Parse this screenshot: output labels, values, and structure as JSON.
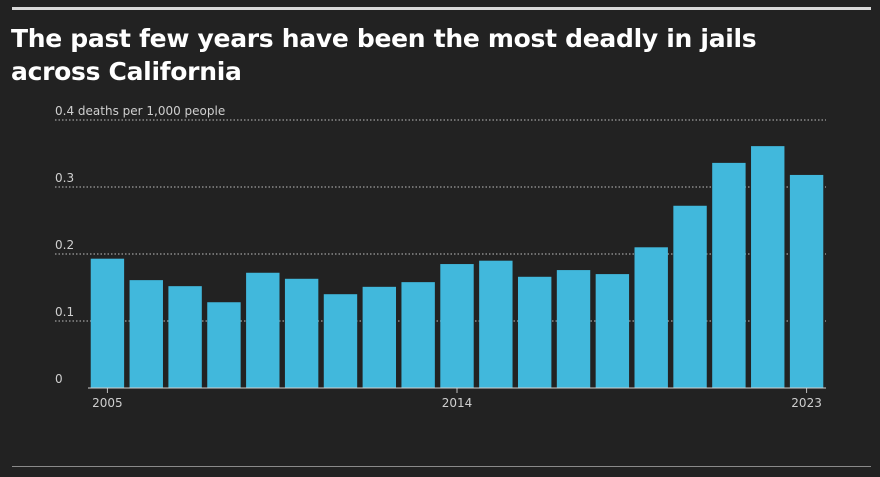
{
  "chart_data": {
    "type": "bar",
    "title": "The past few years have been the most deadly in jails across California",
    "categories": [
      "2005",
      null,
      null,
      null,
      null,
      null,
      null,
      null,
      null,
      "2014",
      null,
      null,
      null,
      null,
      null,
      null,
      null,
      null,
      "2023"
    ],
    "values": [
      0.193,
      0.161,
      0.152,
      0.128,
      0.172,
      0.163,
      0.14,
      0.151,
      0.158,
      0.185,
      0.19,
      0.166,
      0.176,
      0.17,
      0.21,
      0.272,
      0.336,
      0.361,
      0.318
    ],
    "color": "#41b8dc",
    "ylim": [
      0,
      0.4
    ],
    "yticks": [
      0,
      0.1,
      0.2,
      0.3,
      {
        "value": 0.4,
        "label": "0.4 deaths per 1,000 people"
      }
    ],
    "grid": true
  }
}
